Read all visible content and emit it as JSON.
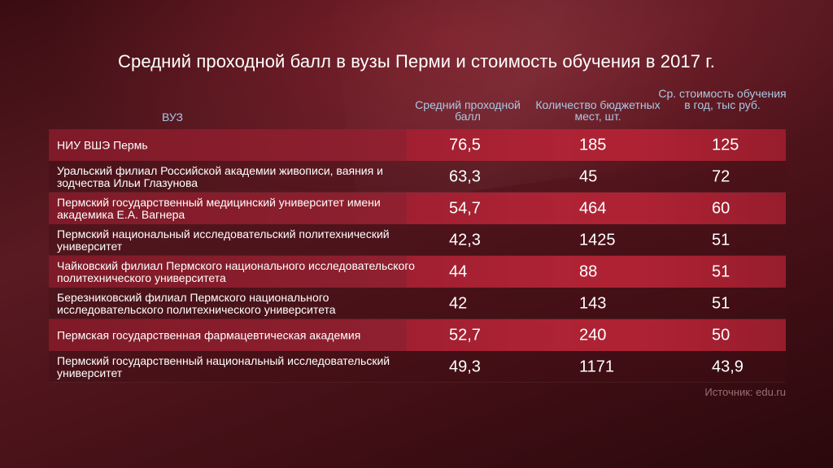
{
  "chart_data": {
    "type": "table",
    "title": "Средний проходной балл в вузы Перми и стоимость обучения в 2017 г.",
    "columns": [
      "ВУЗ",
      "Средний проходной балл",
      "Количество бюджетных мест, шт.",
      "Ср. стоимость обучения в год, тыс руб."
    ],
    "rows": [
      {
        "name": "НИУ ВШЭ Пермь",
        "score": "76,5",
        "places": "185",
        "cost": "125"
      },
      {
        "name": "Уральский филиал Российской академии живописи, ваяния и зодчества Ильи Глазунова",
        "score": "63,3",
        "places": "45",
        "cost": "72"
      },
      {
        "name": "Пермский государственный медицинский университет имени академика Е.А. Вагнера",
        "score": "54,7",
        "places": "464",
        "cost": "60"
      },
      {
        "name": "Пермский национальный исследовательский политехнический университет",
        "score": "42,3",
        "places": "1425",
        "cost": "51"
      },
      {
        "name": "Чайковский филиал Пермского национального исследовательского политехнического университета",
        "score": "44",
        "places": "88",
        "cost": "51"
      },
      {
        "name": "Березниковский филиал Пермского национального исследовательского политехнического университета",
        "score": "42",
        "places": "143",
        "cost": "51"
      },
      {
        "name": "Пермская государственная фармацевтическая академия",
        "score": "52,7",
        "places": "240",
        "cost": "50"
      },
      {
        "name": "Пермский государственный национальный исследовательский университет",
        "score": "49,3",
        "places": "1171",
        "cost": "43,9"
      }
    ],
    "source": "Источник: edu.ru"
  },
  "colors": {
    "header_text": "#a9c9e3",
    "row_highlight": "#8c1f2e",
    "background": "#4a1219"
  }
}
